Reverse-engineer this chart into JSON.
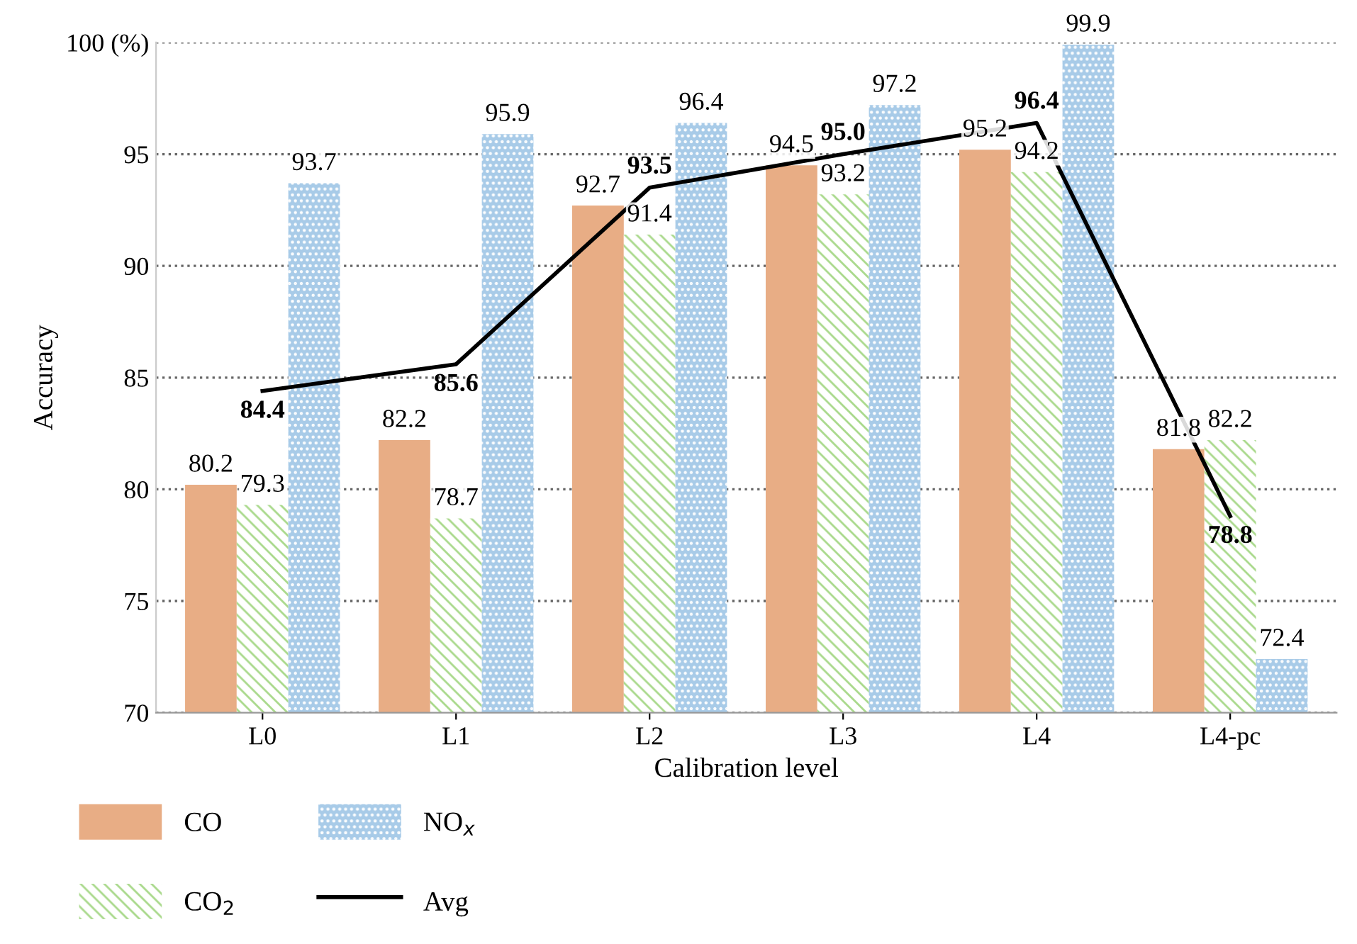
{
  "chart_data": {
    "type": "bar",
    "xlabel": "Calibration level",
    "ylabel": "Accuracy",
    "categories": [
      "L0",
      "L1",
      "L2",
      "L3",
      "L4",
      "L4-pc"
    ],
    "series": [
      {
        "name": "CO",
        "color": "#e8ad85",
        "values": [
          80.2,
          82.2,
          92.7,
          94.5,
          95.2,
          81.8
        ],
        "value_labels": [
          "80.2",
          "82.2",
          "92.7",
          "94.5",
          "95.2",
          "81.8"
        ]
      },
      {
        "name": "CO$_{2}$",
        "color": "#a9d98b",
        "values": [
          79.3,
          78.7,
          91.4,
          93.2,
          94.2,
          82.2
        ],
        "value_labels": [
          "79.3",
          "78.7",
          "91.4",
          "93.2",
          "94.2",
          "82.2"
        ]
      },
      {
        "name": "NO$_{x}$",
        "color": "#a8cbe8",
        "values": [
          93.7,
          95.9,
          96.4,
          97.2,
          99.9,
          72.4
        ],
        "value_labels": [
          "93.7",
          "95.9",
          "96.4",
          "97.2",
          "99.9",
          "72.4"
        ]
      },
      {
        "name": "Avg",
        "type": "line",
        "color": "#000000",
        "values": [
          84.4,
          85.6,
          93.5,
          95.0,
          96.4,
          78.8
        ],
        "value_labels": [
          "84.4",
          "85.6",
          "93.5",
          "95.0",
          "96.4",
          "78.8"
        ]
      }
    ],
    "ylim": [
      70,
      100
    ],
    "yticks": [
      70,
      75,
      80,
      85,
      90,
      95,
      {
        "value": 100,
        "label": "100 (%)"
      }
    ],
    "grid": "y",
    "legend": "bottom",
    "marker": "none",
    "line_style": "solid"
  }
}
